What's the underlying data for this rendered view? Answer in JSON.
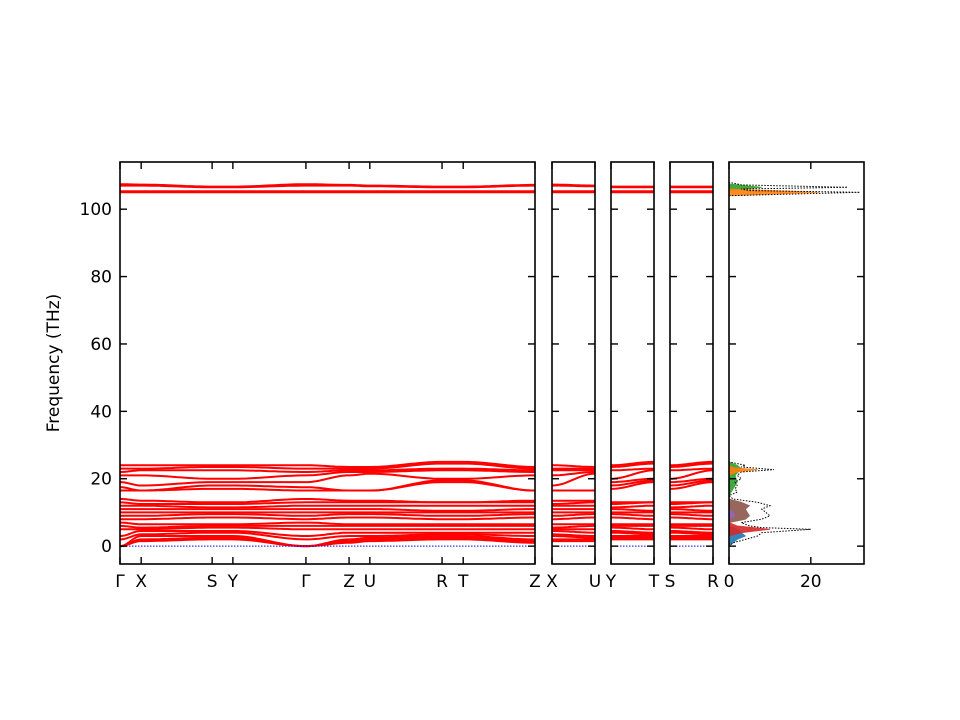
{
  "chart_data": {
    "type": "line",
    "title": "",
    "ylabel": "Frequency (THz)",
    "ylim": [
      -5.3,
      114
    ],
    "yticks": [
      0,
      20,
      40,
      60,
      80,
      100
    ],
    "band_color": "#ff0000",
    "zero_line_color": "#0000ff",
    "band_panels": [
      {
        "points": [
          {
            "label": "Γ",
            "pos": 0.0
          },
          {
            "label": "X",
            "pos": 0.051
          },
          {
            "label": "S",
            "pos": 0.222
          },
          {
            "label": "Y",
            "pos": 0.272
          },
          {
            "label": "Γ",
            "pos": 0.448
          },
          {
            "label": "Z",
            "pos": 0.552
          },
          {
            "label": "U",
            "pos": 0.602
          },
          {
            "label": "R",
            "pos": 0.776
          },
          {
            "label": "T",
            "pos": 0.827
          },
          {
            "label": "Z",
            "pos": 1.0
          }
        ]
      },
      {
        "points": [
          {
            "label": "X",
            "pos": 0
          },
          {
            "label": "U",
            "pos": 1
          }
        ]
      },
      {
        "points": [
          {
            "label": "Y",
            "pos": 0
          },
          {
            "label": "T",
            "pos": 1
          }
        ]
      },
      {
        "points": [
          {
            "label": "S",
            "pos": 0
          },
          {
            "label": "R",
            "pos": 1
          }
        ]
      }
    ],
    "bands_at_points": {
      "Γ": [
        0,
        0,
        0,
        2,
        3,
        5,
        6,
        7,
        8,
        9,
        10,
        11,
        12,
        13,
        14,
        16.5,
        17.5,
        19,
        21,
        22,
        23,
        24,
        105,
        105.3,
        107,
        107.4
      ],
      "X": [
        1.5,
        2,
        3,
        3.5,
        4.5,
        5,
        5.5,
        6.5,
        8,
        9,
        10,
        11,
        12,
        12.5,
        13.5,
        16.5,
        16.5,
        18,
        21,
        22.5,
        23,
        24,
        105,
        105.3,
        107,
        107.3
      ],
      "S": [
        2,
        2.5,
        3,
        4,
        4.5,
        5.5,
        6,
        6.5,
        8.5,
        9.5,
        10,
        11,
        11.5,
        12.5,
        13,
        17,
        18,
        19,
        20,
        22.5,
        23.5,
        24,
        105,
        105.3,
        106.5,
        106.7
      ],
      "Y": [
        2,
        2.5,
        3,
        4,
        4.5,
        5.5,
        6,
        6.5,
        8.5,
        9.5,
        10,
        11,
        11.5,
        12.5,
        13,
        17,
        18,
        19,
        20,
        22.5,
        23.5,
        24,
        105,
        105.3,
        106.5,
        106.7
      ],
      "Z": [
        1,
        1.5,
        2,
        3,
        4,
        5,
        6,
        6.5,
        8.5,
        9.5,
        10,
        11,
        12,
        13,
        13.5,
        16.5,
        16.5,
        21,
        22,
        22.5,
        23,
        23.5,
        105,
        105.3,
        107,
        107.2
      ],
      "U": [
        1.5,
        2,
        2.5,
        3,
        4,
        5,
        6,
        6.5,
        8.5,
        9.5,
        10,
        11,
        12,
        13,
        13.5,
        16.5,
        16.5,
        21.5,
        22,
        22.5,
        23,
        23.5,
        105,
        105.3,
        106.8,
        107
      ],
      "R": [
        2,
        2.5,
        3,
        3.5,
        4,
        5,
        6,
        6.5,
        8,
        9,
        10,
        10.5,
        12,
        13,
        13,
        19,
        19.5,
        20,
        22.5,
        23,
        24.5,
        25,
        105,
        105.3,
        106.5,
        106.7
      ],
      "T": [
        2,
        2.5,
        3,
        3.5,
        4,
        5,
        6,
        6.5,
        8,
        9,
        10,
        10.5,
        12,
        13,
        13,
        19,
        19.5,
        20,
        22.5,
        23,
        24.5,
        25,
        105,
        105.3,
        106.5,
        106.7
      ]
    },
    "dos": {
      "xlim": [
        0,
        33
      ],
      "xticks": [
        0,
        20
      ],
      "total": {
        "color": "#000000",
        "points": [
          [
            -1,
            0
          ],
          [
            0,
            0
          ],
          [
            1,
            1
          ],
          [
            2,
            4
          ],
          [
            3,
            7
          ],
          [
            4,
            8
          ],
          [
            5,
            20
          ],
          [
            5.5,
            8
          ],
          [
            6,
            5
          ],
          [
            7,
            3
          ],
          [
            8,
            8
          ],
          [
            9,
            10
          ],
          [
            10,
            9
          ],
          [
            11,
            8
          ],
          [
            12,
            10
          ],
          [
            13,
            7
          ],
          [
            14,
            1
          ],
          [
            15,
            0
          ],
          [
            16,
            2
          ],
          [
            17,
            1.5
          ],
          [
            18,
            2
          ],
          [
            19,
            1.5
          ],
          [
            20,
            3
          ],
          [
            21,
            2
          ],
          [
            22,
            3
          ],
          [
            22.7,
            11
          ],
          [
            23.5,
            3
          ],
          [
            24,
            4
          ],
          [
            25,
            0
          ],
          [
            104,
            0
          ],
          [
            105,
            32
          ],
          [
            105.5,
            5
          ],
          [
            106,
            3
          ],
          [
            106.5,
            29
          ],
          [
            107.2,
            3
          ],
          [
            108,
            0
          ]
        ]
      },
      "partials": [
        {
          "color": "#1f77b4",
          "points": [
            [
              0,
              0
            ],
            [
              2,
              2
            ],
            [
              3,
              4
            ],
            [
              4,
              3
            ],
            [
              5,
              2
            ],
            [
              6,
              0
            ]
          ]
        },
        {
          "color": "#d62728",
          "points": [
            [
              3,
              0
            ],
            [
              4,
              3
            ],
            [
              5,
              10
            ],
            [
              6,
              2
            ],
            [
              7,
              0
            ]
          ]
        },
        {
          "color": "#8c564b",
          "points": [
            [
              7,
              0
            ],
            [
              8,
              4
            ],
            [
              9,
              5
            ],
            [
              10,
              4.5
            ],
            [
              11,
              4
            ],
            [
              12,
              5
            ],
            [
              13,
              3
            ],
            [
              14,
              0
            ]
          ]
        },
        {
          "color": "#9467bd",
          "points": [
            [
              8,
              0
            ],
            [
              9,
              1.5
            ],
            [
              10,
              1
            ],
            [
              11,
              0
            ]
          ]
        },
        {
          "color": "#2ca02c",
          "points": [
            [
              15,
              0
            ],
            [
              17,
              1
            ],
            [
              19,
              2
            ],
            [
              21,
              1.5
            ],
            [
              23,
              3
            ],
            [
              24,
              2
            ],
            [
              25,
              0
            ],
            [
              105.5,
              0
            ],
            [
              106.5,
              8
            ],
            [
              107.5,
              0
            ]
          ]
        },
        {
          "color": "#ff7f0e",
          "points": [
            [
              21,
              0
            ],
            [
              22,
              2
            ],
            [
              22.7,
              7
            ],
            [
              23.3,
              1
            ],
            [
              24,
              0
            ],
            [
              104,
              0
            ],
            [
              105,
              22
            ],
            [
              106,
              0
            ]
          ]
        }
      ]
    }
  }
}
